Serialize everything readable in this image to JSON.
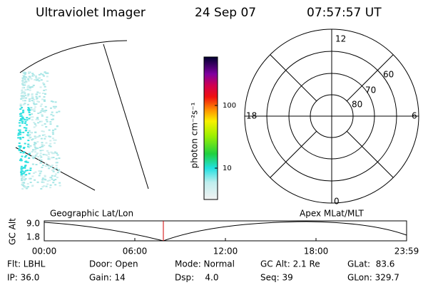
{
  "header": {
    "instrument": "Ultraviolet Imager",
    "date": "24 Sep 07",
    "time": "07:57:57 UT"
  },
  "colorbar": {
    "label": "photon cm⁻²s⁻¹",
    "ticks": [
      "100",
      "10"
    ]
  },
  "polar": {
    "mlt_labels": [
      "12",
      "18",
      "6",
      "0"
    ],
    "lat_labels": [
      "60",
      "70",
      "80"
    ]
  },
  "timeline": {
    "y_label": "GC Alt",
    "y_ticks": [
      "9.0",
      "1.8"
    ],
    "left_title": "Geographic Lat/Lon",
    "right_title": "Apex MLat/MLT",
    "x_ticks": [
      "00:00",
      "06:00",
      "12:00",
      "18:00",
      "23:59"
    ]
  },
  "info": {
    "rows": [
      [
        "Flt: LBHL",
        "Door: Open",
        "Mode: Normal",
        "GC Alt: 2.1 Re",
        "GLat:  83.6"
      ],
      [
        "IP: 36.0",
        "Gain: 14",
        "Dsp:    4.0",
        "Seq: 39",
        "GLon: 329.7"
      ]
    ]
  }
}
